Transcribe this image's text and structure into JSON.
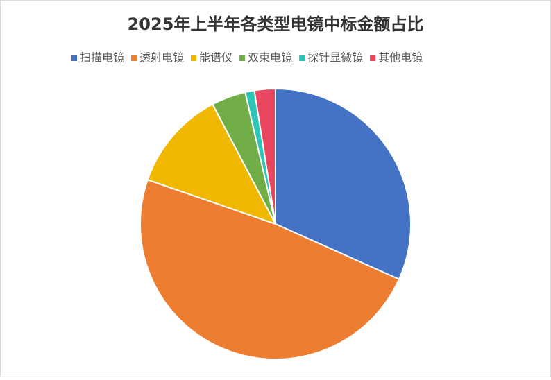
{
  "chart_data": {
    "type": "pie",
    "title": "2025年上半年各类型电镜中标金额占比",
    "categories": [
      "扫描电镜",
      "透射电镜",
      "能谱仪",
      "双束电镜",
      "探针显微镜",
      "其他电镜"
    ],
    "values": [
      31.7,
      48.6,
      12.0,
      4.1,
      1.1,
      2.5
    ],
    "colors": [
      "#4472c4",
      "#ed7d31",
      "#f0b800",
      "#70ad47",
      "#2ec4b6",
      "#e8475f"
    ],
    "legend": "top"
  }
}
